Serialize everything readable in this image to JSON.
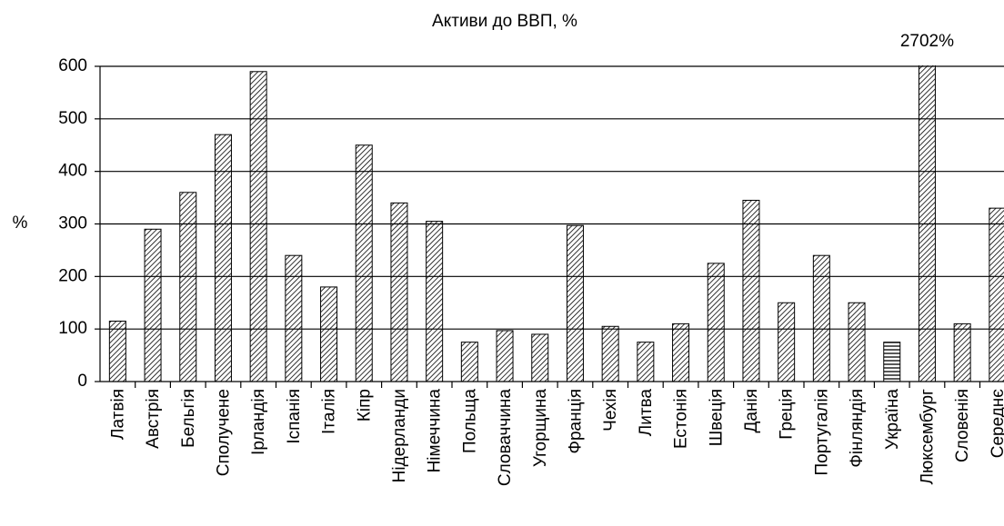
{
  "chart_data": {
    "type": "bar",
    "title": "Активи до ВВП, %",
    "y_label": "%",
    "categories": [
      "Латвія",
      "Австрія",
      "Бельгія",
      "Сполучене",
      "Ірландія",
      "Іспанія",
      "Італія",
      "Кіпр",
      "Нідерланди",
      "Німеччина",
      "Польща",
      "Словаччина",
      "Угорщина",
      "Франція",
      "Чехія",
      "Литва",
      "Естонія",
      "Швеція",
      "Данія",
      "Греція",
      "Португалія",
      "Фінляндія",
      "Україна",
      "Люксембург",
      "Словенія",
      "Середнє"
    ],
    "values": [
      115,
      290,
      360,
      470,
      590,
      240,
      180,
      450,
      340,
      305,
      75,
      97,
      90,
      297,
      105,
      75,
      110,
      225,
      345,
      150,
      240,
      150,
      75,
      2702,
      110,
      330
    ],
    "value_labels": [
      null,
      null,
      null,
      null,
      null,
      null,
      null,
      null,
      null,
      null,
      null,
      null,
      null,
      null,
      null,
      null,
      null,
      null,
      null,
      null,
      null,
      null,
      null,
      "2702%",
      null,
      null
    ],
    "patterns": [
      "diagonal",
      "diagonal",
      "diagonal",
      "diagonal",
      "diagonal",
      "diagonal",
      "diagonal",
      "diagonal",
      "diagonal",
      "diagonal",
      "diagonal",
      "diagonal",
      "diagonal",
      "diagonal",
      "diagonal",
      "diagonal",
      "diagonal",
      "diagonal",
      "diagonal",
      "diagonal",
      "diagonal",
      "diagonal",
      "horizontal",
      "diagonal",
      "diagonal",
      "diagonal"
    ],
    "ylim": [
      0,
      600
    ],
    "yticks": [
      0,
      100,
      200,
      300,
      400,
      500,
      600
    ],
    "grid": true
  }
}
